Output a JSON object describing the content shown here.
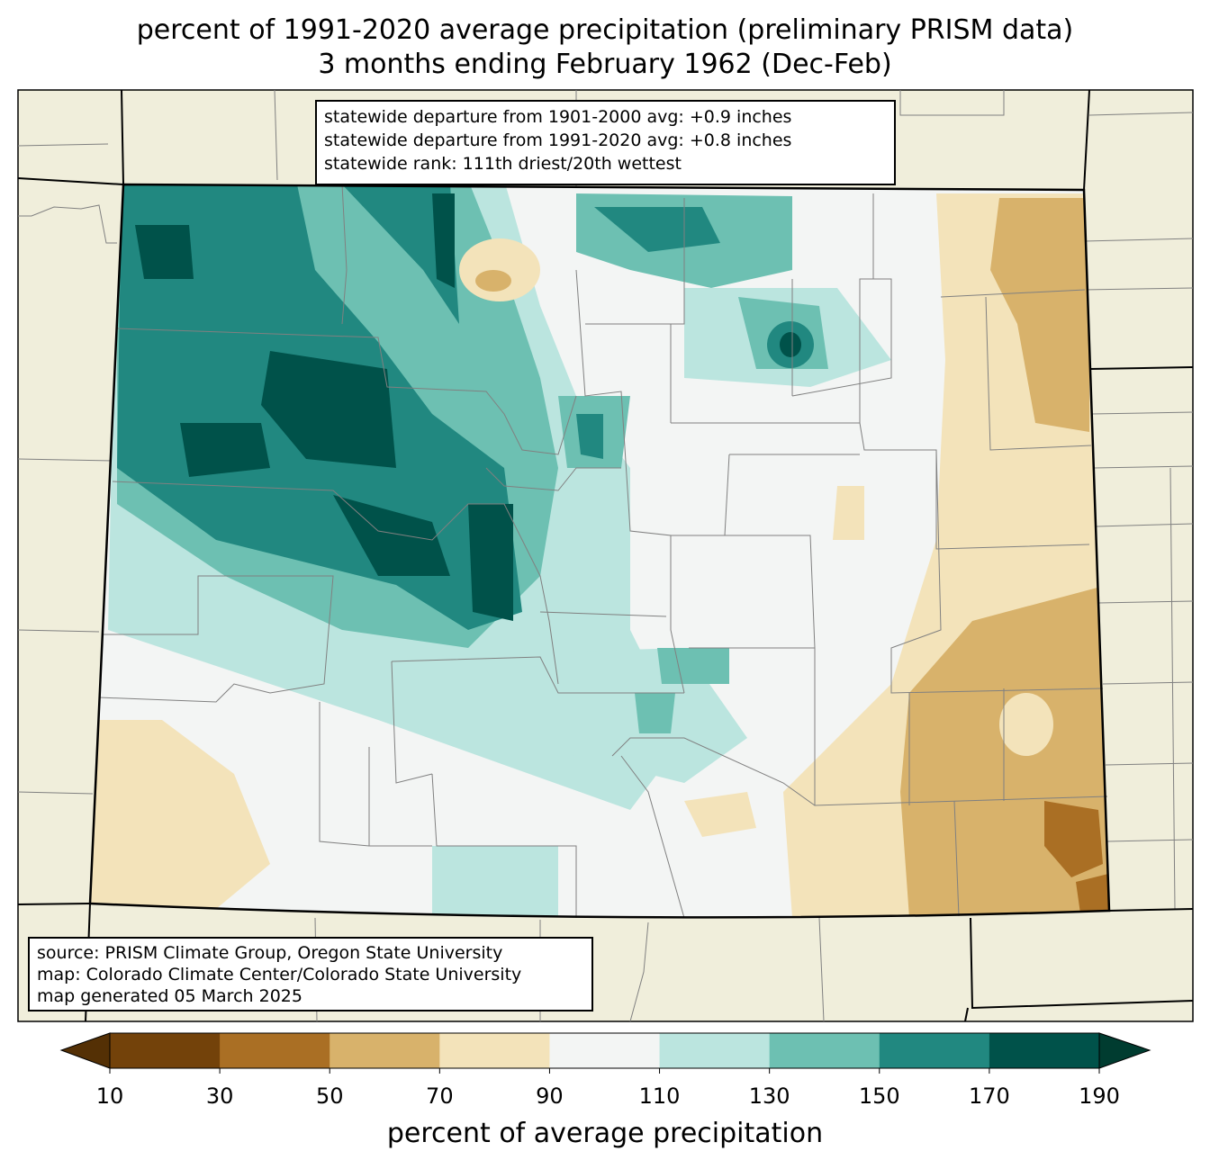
{
  "title": {
    "line1": "percent of 1991-2020 average precipitation (preliminary PRISM data)",
    "line2": "3 months ending February 1962 (Dec-Feb)"
  },
  "stats": {
    "line1": "statewide departure from 1901-2000 avg: +0.9 inches",
    "line2": "statewide departure from 1991-2020 avg: +0.8 inches",
    "line3": "statewide rank: 111th driest/20th wettest"
  },
  "credits": {
    "line1": "source: PRISM Climate Group, Oregon State University",
    "line2": "map: Colorado Climate Center/Colorado State University",
    "line3": "map generated 05 March 2025"
  },
  "colorbar": {
    "label": "percent of average precipitation",
    "ticks": [
      "10",
      "30",
      "50",
      "70",
      "90",
      "110",
      "130",
      "150",
      "170",
      "190"
    ],
    "colors": [
      "#73420a",
      "#aa6f24",
      "#d8b26b",
      "#f3e3ba",
      "#f3f5f4",
      "#bbe5df",
      "#6dc0b2",
      "#218880",
      "#00524a"
    ],
    "under_color": "#543005",
    "over_color": "#003c30"
  },
  "colors": {
    "land": "#f0eedb",
    "state_border": "#000000",
    "county_border": "#808080"
  }
}
